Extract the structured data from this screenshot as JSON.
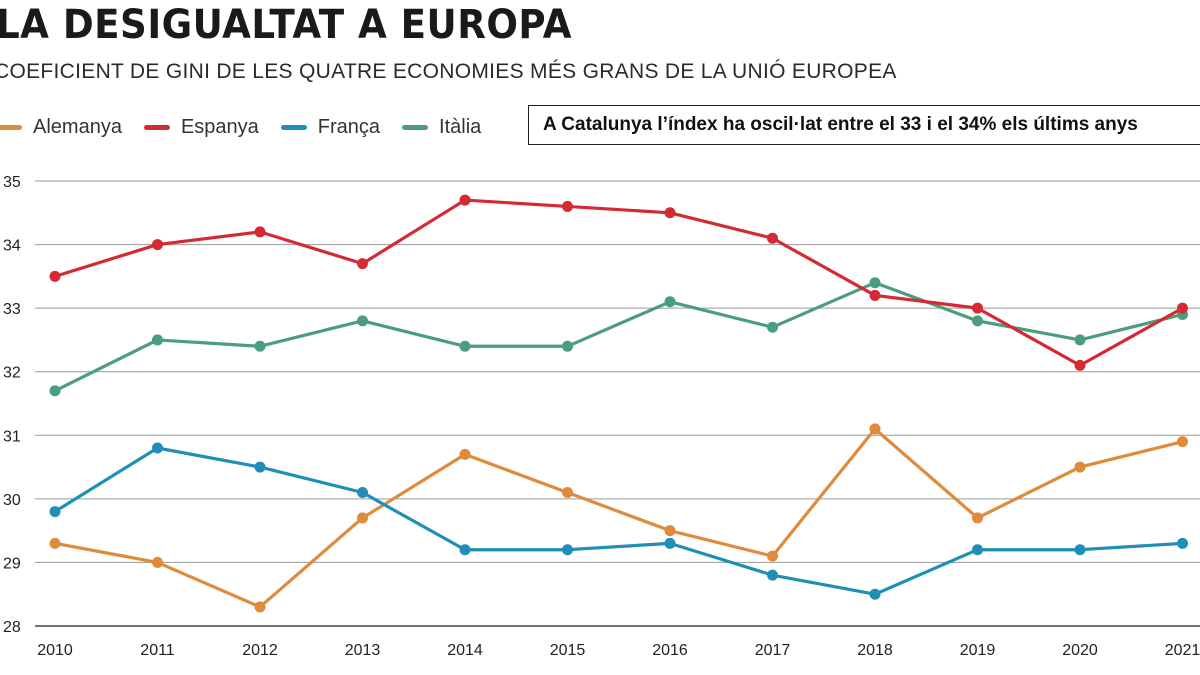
{
  "header": {
    "title": "LA DESIGUALTAT A EUROPA",
    "subtitle": "COEFICIENT DE GINI DE LES QUATRE ECONOMIES MÉS GRANS DE LA UNIÓ EUROPEA"
  },
  "note": "A Catalunya l’índex ha oscil·lat entre el 33 i el 34% els últims anys",
  "chart_data": {
    "type": "line",
    "x": [
      2010,
      2011,
      2012,
      2013,
      2014,
      2015,
      2016,
      2017,
      2018,
      2019,
      2020,
      2021
    ],
    "ylim": [
      28,
      35
    ],
    "yticks": [
      28,
      29,
      30,
      31,
      32,
      33,
      34,
      35
    ],
    "grid": true,
    "legend_position": "top-left",
    "series": [
      {
        "name": "Alemanya",
        "color": "#e08a3c",
        "values": [
          29.3,
          29.0,
          28.3,
          29.7,
          30.7,
          30.1,
          29.5,
          29.1,
          31.1,
          29.7,
          30.5,
          30.9
        ]
      },
      {
        "name": "Espanya",
        "color": "#d42a34",
        "values": [
          33.5,
          34.0,
          34.2,
          33.7,
          34.7,
          34.6,
          34.5,
          34.1,
          33.2,
          33.0,
          32.1,
          33.0
        ]
      },
      {
        "name": "França",
        "color": "#1f8fb5",
        "values": [
          29.8,
          30.8,
          30.5,
          30.1,
          29.2,
          29.2,
          29.3,
          28.8,
          28.5,
          29.2,
          29.2,
          29.3
        ]
      },
      {
        "name": "Itàlia",
        "color": "#4a9e7e",
        "values": [
          31.7,
          32.5,
          32.4,
          32.8,
          32.4,
          32.4,
          33.1,
          32.7,
          33.4,
          32.8,
          32.5,
          32.9
        ]
      }
    ]
  }
}
